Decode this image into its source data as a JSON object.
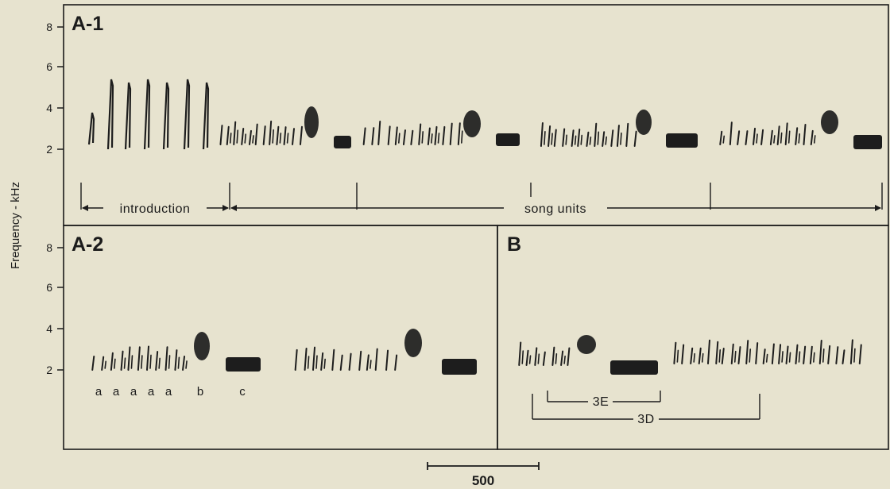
{
  "figure": {
    "y_axis_title": "Frequency - kHz",
    "y_ticks": [
      "8",
      "6",
      "4",
      "2"
    ],
    "panels": {
      "a1": {
        "label": "A-1"
      },
      "a2": {
        "label": "A-2"
      },
      "b": {
        "label": "B"
      }
    },
    "annotations": {
      "introduction": "introduction",
      "song_units": "song units",
      "letters": [
        "a",
        "a",
        "a",
        "a",
        "a",
        "b",
        "c"
      ],
      "bracket_3e": "3E",
      "bracket_3d": "3D"
    },
    "scale_bar": {
      "label": "500"
    }
  }
}
